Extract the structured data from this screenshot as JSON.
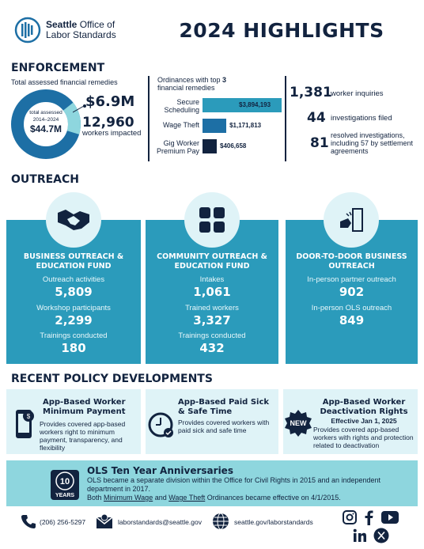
{
  "header": {
    "logo_line1": "Seattle Office of",
    "logo_line2": "Labor Standards",
    "title": "2024 HIGHLIGHTS"
  },
  "enforcement": {
    "section_title": "ENFORCEMENT",
    "donut": {
      "caption": "Total assessed financial remedies",
      "center_label": "total assessed",
      "center_years": "2014–2024",
      "center_value": "$44.7M",
      "highlight_value": "$6.9M",
      "highlight_fraction": 0.154,
      "workers_value": "12,960",
      "workers_label": "workers impacted",
      "colors": {
        "main": "#1d6fa5",
        "highlight": "#8ed6de"
      }
    },
    "ordinances": {
      "caption_pre": "Ordinances with top ",
      "caption_num": "3",
      "caption_post": "financial remedies",
      "items": [
        {
          "label": "Secure Scheduling",
          "value_text": "$3,894,193",
          "value": 3894193,
          "color": "#2b9bbb"
        },
        {
          "label": "Wage Theft",
          "value_text": "$1,171,813",
          "value": 1171813,
          "color": "#1d6fa5"
        },
        {
          "label": "Gig Worker Premium Pay",
          "value_text": "$406,658",
          "value": 406658,
          "color": "#12233f"
        }
      ]
    },
    "stats": [
      {
        "value": "1,381",
        "label": "worker inquiries"
      },
      {
        "value": "44",
        "label": "investigations filed"
      },
      {
        "value": "81",
        "label": "resolved investigations, including 57 by settlement agreements"
      }
    ]
  },
  "outreach": {
    "section_title": "OUTREACH",
    "cards": [
      {
        "title": "BUSINESS OUTREACH & EDUCATION FUND",
        "icon": "handshake-icon",
        "stats": [
          {
            "label": "Outreach activities",
            "value": "5,809"
          },
          {
            "label": "Workshop participants",
            "value": "2,299"
          },
          {
            "label": "Trainings conducted",
            "value": "180"
          }
        ]
      },
      {
        "title": "COMMUNITY OUTREACH & EDUCATION FUND",
        "icon": "joined-hands-icon",
        "stats": [
          {
            "label": "Intakes",
            "value": "1,061"
          },
          {
            "label": "Trained workers",
            "value": "3,327"
          },
          {
            "label": "Trainings conducted",
            "value": "432"
          }
        ]
      },
      {
        "title": "DOOR-TO-DOOR BUSINESS OUTREACH",
        "icon": "door-knock-icon",
        "stats": [
          {
            "label": "In-person partner outreach",
            "value": "902"
          },
          {
            "label": "In-person OLS outreach",
            "value": "849"
          }
        ]
      }
    ]
  },
  "policy": {
    "section_title": "RECENT POLICY DEVELOPMENTS",
    "cards": [
      {
        "title": "App-Based Worker Minimum Payment",
        "sub": "",
        "text": "Provides covered app-based workers right to minimum payment, transparency, and flexibility",
        "icon": "phone-app-icon"
      },
      {
        "title": "App-Based Paid Sick & Safe Time",
        "sub": "",
        "text": "Provides covered workers with paid sick and safe time",
        "icon": "clock-icon"
      },
      {
        "title": "App-Based Worker Deactivation Rights",
        "sub": "Effective Jan 1, 2025",
        "text": "Provides covered app-based workers with rights and protection related to deactivation",
        "icon": "new-badge-icon",
        "badge": "NEW"
      }
    ]
  },
  "anniversary": {
    "badge_num": "10",
    "badge_word": "YEARS",
    "title": "OLS Ten Year Anniversaries",
    "line1": "OLS became a separate division within the Office for Civil Rights in 2015 and an independent department in 2017.",
    "line2_pre": "Both ",
    "link1": "Minimum Wage",
    "line2_mid": " and ",
    "link2": "Wage Theft",
    "line2_post": " Ordinances became effective on 4/1/2015."
  },
  "footer": {
    "phone": "(206) 256-5297",
    "email": "laborstandards@seattle.gov",
    "website": "seattle.gov/laborstandards"
  }
}
